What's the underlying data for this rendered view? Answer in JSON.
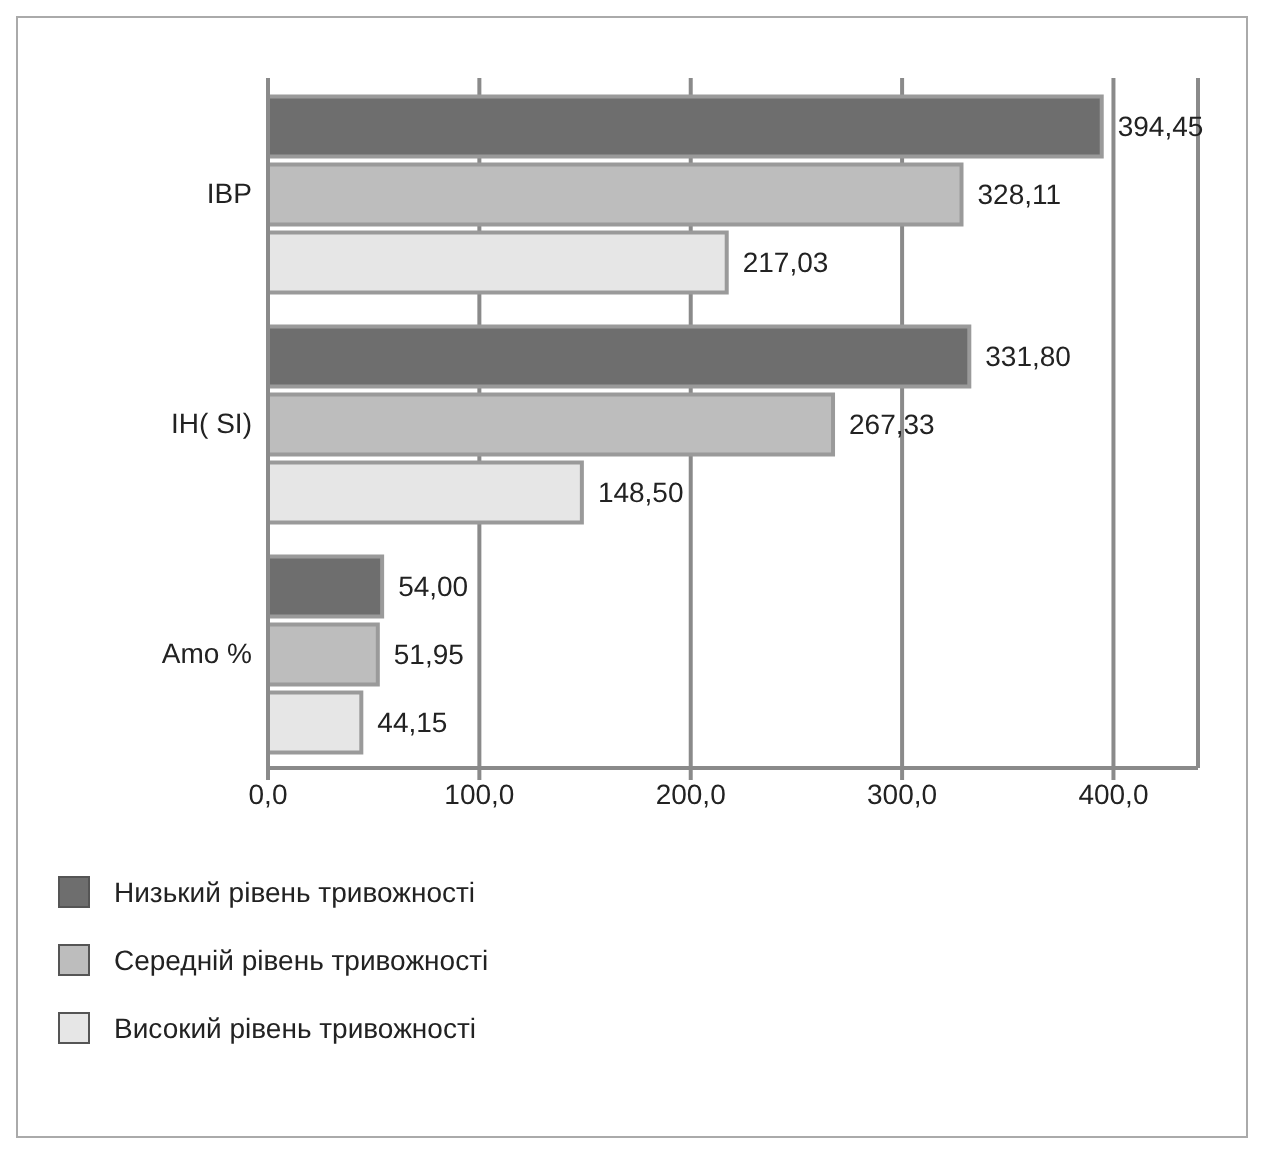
{
  "chart_data": {
    "type": "bar",
    "orientation": "horizontal",
    "categories": [
      "IBP",
      "IH( SI)",
      "Amo %"
    ],
    "series": [
      {
        "name": "Низький рівень тривожності",
        "color": "#6e6e6e",
        "values": [
          394.45,
          331.8,
          54.0
        ],
        "value_labels": [
          "394,45",
          "331,80",
          "54,00"
        ]
      },
      {
        "name": "Середній рівень тривожності",
        "color": "#bdbdbd",
        "values": [
          328.11,
          267.33,
          51.95
        ],
        "value_labels": [
          "328,11",
          "267,33",
          "51,95"
        ]
      },
      {
        "name": "Високий рівень тривожності",
        "color": "#e6e6e6",
        "values": [
          217.03,
          148.5,
          44.15
        ],
        "value_labels": [
          "217,03",
          "148,50",
          "44,15"
        ]
      }
    ],
    "xlim": [
      0,
      440
    ],
    "xticks": [
      {
        "value": 0,
        "label": "0,0"
      },
      {
        "value": 100,
        "label": "100,0"
      },
      {
        "value": 200,
        "label": "200,0"
      },
      {
        "value": 300,
        "label": "300,0"
      },
      {
        "value": 400,
        "label": "400,0"
      }
    ],
    "grid": "x",
    "legend": "bottom"
  }
}
